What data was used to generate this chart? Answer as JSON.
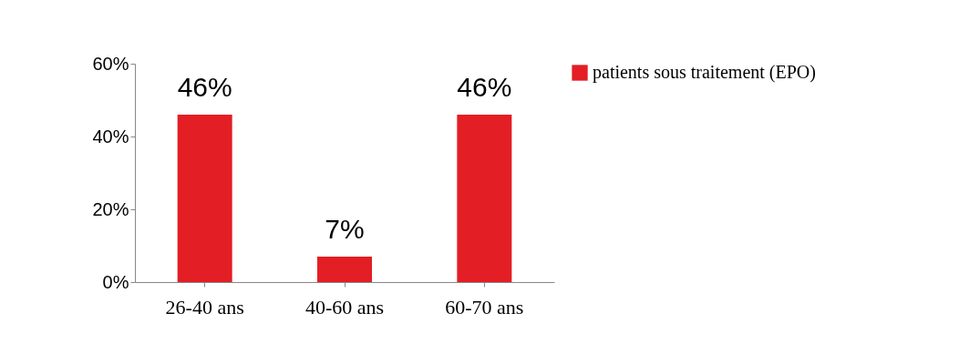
{
  "chart_data": {
    "type": "bar",
    "categories": [
      "26-40 ans",
      "40-60 ans",
      "60-70 ans"
    ],
    "series": [
      {
        "name": "patients sous traitement (EPO)",
        "color": "#e31e24",
        "values": [
          46,
          7,
          46
        ]
      }
    ],
    "value_labels": [
      "46%",
      "7%",
      "46%"
    ],
    "ylim": [
      0,
      60
    ],
    "yticks": [
      {
        "value": 0,
        "label": "0%"
      },
      {
        "value": 20,
        "label": "20%"
      },
      {
        "value": 40,
        "label": "40%"
      },
      {
        "value": 60,
        "label": "60%"
      }
    ],
    "grid": false,
    "legend": "right"
  }
}
